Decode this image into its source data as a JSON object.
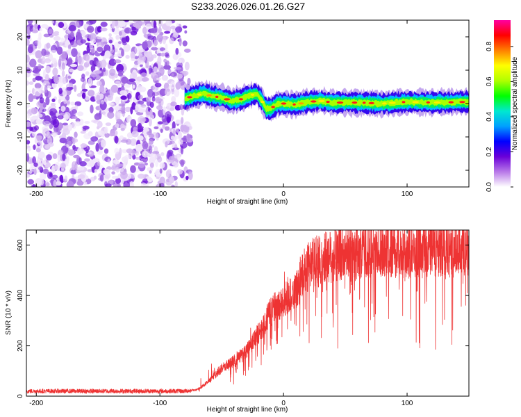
{
  "chart_data": [
    {
      "type": "heatmap",
      "title": "S233.2026.026.01.26.G27",
      "xlabel": "Height of straight line (km)",
      "ylabel": "Frequency (Hz)",
      "xlim": [
        -208,
        150
      ],
      "ylim": [
        -25,
        25
      ],
      "xticks": [
        -200,
        -100,
        0,
        100
      ],
      "yticks": [
        -20,
        -10,
        0,
        10,
        20
      ],
      "noise_region_x": [
        -208,
        -75
      ],
      "signal_trace": {
        "x": [
          -80,
          -72,
          -65,
          -58,
          -50,
          -42,
          -35,
          -28,
          -22,
          -18,
          -14,
          -10,
          -5,
          0,
          10,
          20,
          30,
          40,
          60,
          80,
          100,
          120,
          150
        ],
        "freq": [
          1.5,
          2.3,
          3.0,
          2.2,
          1.8,
          0.8,
          1.2,
          2.3,
          3.0,
          1.2,
          -1.5,
          -1.5,
          0,
          0,
          -0.3,
          0.5,
          0.8,
          0.3,
          0.3,
          0,
          0.5,
          0.3,
          0.5
        ]
      },
      "colorbar": {
        "label": "Normalized spectral amplitude",
        "range": [
          0.0,
          0.95
        ],
        "ticks": [
          0.0,
          0.2,
          0.4,
          0.6,
          0.8
        ],
        "colors": [
          "#ffffff",
          "#b878e8",
          "#6a00d8",
          "#0000ff",
          "#00a0ff",
          "#00e8d0",
          "#00ff00",
          "#b0ff00",
          "#ffff00",
          "#ff8000",
          "#ff0000",
          "#ff00a0"
        ]
      }
    },
    {
      "type": "line",
      "xlabel": "Height of straight line (km)",
      "ylabel": "SNR (10 * v/v)",
      "xlim": [
        -208,
        150
      ],
      "ylim": [
        0,
        660
      ],
      "xticks": [
        -200,
        -100,
        0,
        100
      ],
      "yticks": [
        0,
        200,
        400,
        600
      ],
      "color": "#ee3333",
      "envelope": {
        "x": [
          -208,
          -80,
          -70,
          -60,
          -50,
          -40,
          -30,
          -20,
          -10,
          0,
          10,
          20,
          40,
          60,
          80,
          100,
          120,
          150
        ],
        "y": [
          20,
          20,
          25,
          60,
          110,
          140,
          180,
          250,
          340,
          380,
          420,
          520,
          560,
          570,
          575,
          580,
          585,
          590
        ]
      }
    }
  ]
}
